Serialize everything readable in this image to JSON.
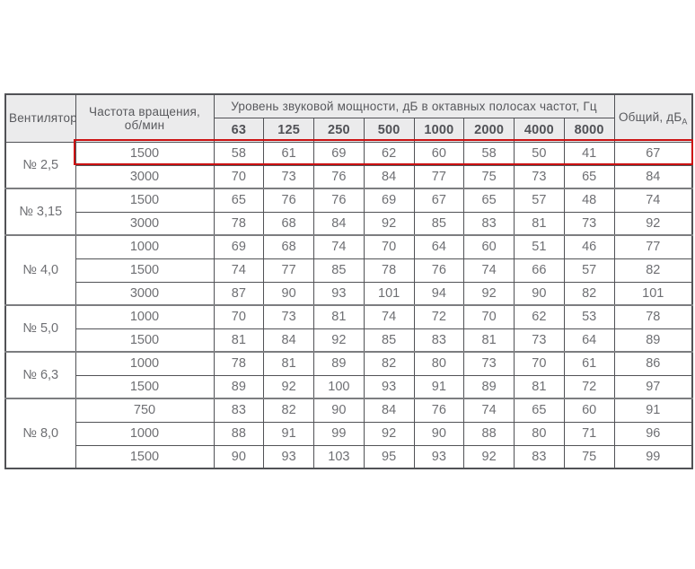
{
  "colors": {
    "highlight_red": "#cb1112",
    "border_dark": "#515256",
    "border_group": "#7c7d80",
    "header_bg": "#ebebec",
    "text_gray": "#6e6f73",
    "page_bg": "#ffffff"
  },
  "table": {
    "header": {
      "fan": "Вентилятор",
      "rpm": "Частота вращения, об/мин",
      "spl_group": "Уровень звуковой мощности, дБ в октавных полосах частот, Гц",
      "frequencies": [
        "63",
        "125",
        "250",
        "500",
        "1000",
        "2000",
        "4000",
        "8000"
      ],
      "total": "Общий, дБ",
      "total_sub": "А"
    },
    "groups": [
      {
        "fan": "№ 2,5",
        "rows": [
          {
            "rpm": "1500",
            "levels": [
              58,
              61,
              69,
              62,
              60,
              58,
              50,
              41
            ],
            "total": 67,
            "highlighted": true
          },
          {
            "rpm": "3000",
            "levels": [
              70,
              73,
              76,
              84,
              77,
              75,
              73,
              65
            ],
            "total": 84
          }
        ]
      },
      {
        "fan": "№ 3,15",
        "rows": [
          {
            "rpm": "1500",
            "levels": [
              65,
              76,
              76,
              69,
              67,
              65,
              57,
              48
            ],
            "total": 74
          },
          {
            "rpm": "3000",
            "levels": [
              78,
              68,
              84,
              92,
              85,
              83,
              81,
              73
            ],
            "total": 92
          }
        ]
      },
      {
        "fan": "№ 4,0",
        "rows": [
          {
            "rpm": "1000",
            "levels": [
              69,
              68,
              74,
              70,
              64,
              60,
              51,
              46
            ],
            "total": 77
          },
          {
            "rpm": "1500",
            "levels": [
              74,
              77,
              85,
              78,
              76,
              74,
              66,
              57
            ],
            "total": 82
          },
          {
            "rpm": "3000",
            "levels": [
              87,
              90,
              93,
              101,
              94,
              92,
              90,
              82
            ],
            "total": 101
          }
        ]
      },
      {
        "fan": "№ 5,0",
        "rows": [
          {
            "rpm": "1000",
            "levels": [
              70,
              73,
              81,
              74,
              72,
              70,
              62,
              53
            ],
            "total": 78
          },
          {
            "rpm": "1500",
            "levels": [
              81,
              84,
              92,
              85,
              83,
              81,
              73,
              64
            ],
            "total": 89
          }
        ]
      },
      {
        "fan": "№ 6,3",
        "rows": [
          {
            "rpm": "1000",
            "levels": [
              78,
              81,
              89,
              82,
              80,
              73,
              70,
              61
            ],
            "total": 86
          },
          {
            "rpm": "1500",
            "levels": [
              89,
              92,
              100,
              93,
              91,
              89,
              81,
              72
            ],
            "total": 97
          }
        ]
      },
      {
        "fan": "№ 8,0",
        "rows": [
          {
            "rpm": "750",
            "levels": [
              83,
              82,
              90,
              84,
              76,
              74,
              65,
              60
            ],
            "total": 91
          },
          {
            "rpm": "1000",
            "levels": [
              88,
              91,
              99,
              92,
              90,
              88,
              80,
              71
            ],
            "total": 96
          },
          {
            "rpm": "1500",
            "levels": [
              90,
              93,
              103,
              95,
              93,
              92,
              83,
              75
            ],
            "total": 99
          }
        ]
      }
    ]
  }
}
